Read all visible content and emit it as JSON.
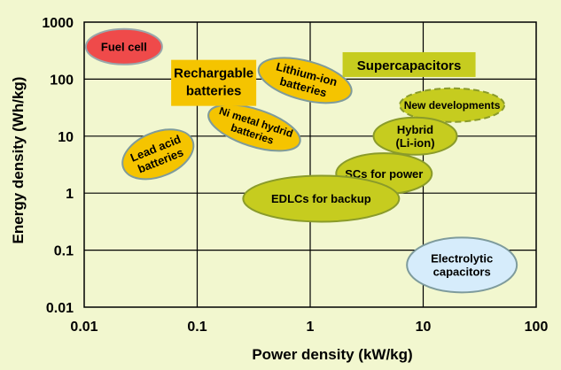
{
  "chart_data": {
    "type": "scatter",
    "title": "",
    "xlabel": "Power density (kW/kg)",
    "ylabel": "Energy density (Wh/kg)",
    "xscale": "log",
    "yscale": "log",
    "xlim": [
      0.01,
      100
    ],
    "ylim": [
      0.01,
      1000
    ],
    "xticks": [
      "0.01",
      "0.1",
      "1",
      "10",
      "100"
    ],
    "yticks": [
      "1000",
      "100",
      "10",
      "1",
      "0.1",
      "0.01"
    ],
    "grid": true,
    "category_labels": [
      {
        "text": "Rechargable batteries",
        "x": 0.14,
        "y": 80
      },
      {
        "text": "Supercapacitors",
        "x": 7.5,
        "y": 180
      }
    ],
    "regions": [
      {
        "name": "Fuel cell",
        "x": 0.0225,
        "y": 370,
        "color": "#ef4a4a",
        "text_color": "#ffffff",
        "dashed": false
      },
      {
        "name": "Lithium-ion batteries",
        "x": 0.9,
        "y": 95,
        "color": "#f5c400",
        "text_color": "#000000",
        "dashed": false
      },
      {
        "name": "Ni metal hydrid batteries",
        "x": 0.32,
        "y": 14,
        "color": "#f5c400",
        "text_color": "#000000",
        "dashed": false
      },
      {
        "name": "Lead acid batteries",
        "x": 0.045,
        "y": 4.8,
        "color": "#f5c400",
        "text_color": "#000000",
        "dashed": false
      },
      {
        "name": "New developments",
        "x": 18,
        "y": 35,
        "color": "#c6cc1f",
        "text_color": "#000000",
        "dashed": true
      },
      {
        "name": "Hybrid (Li-ion)",
        "x": 8.5,
        "y": 10,
        "color": "#c6cc1f",
        "text_color": "#000000",
        "dashed": false
      },
      {
        "name": "SCs for power",
        "x": 4.5,
        "y": 2.2,
        "color": "#c6cc1f",
        "text_color": "#000000",
        "dashed": false
      },
      {
        "name": "EDLCs for backup",
        "x": 1.25,
        "y": 0.8,
        "color": "#c6cc1f",
        "text_color": "#000000",
        "dashed": false
      },
      {
        "name": "Electrolytic capacitors",
        "x": 22,
        "y": 0.055,
        "color": "#d6ecfb",
        "text_color": "#000000",
        "dashed": false
      }
    ]
  },
  "colors": {
    "background": "#f2f7cf",
    "rechargeable": "#f5c400",
    "supercap": "#c6cc1f",
    "category_label_batteries": "#f5c400",
    "category_label_supercap": "#c6cc1f",
    "outline_batteries": "#7e9b9c",
    "outline_supercap": "#8a9b2a"
  }
}
